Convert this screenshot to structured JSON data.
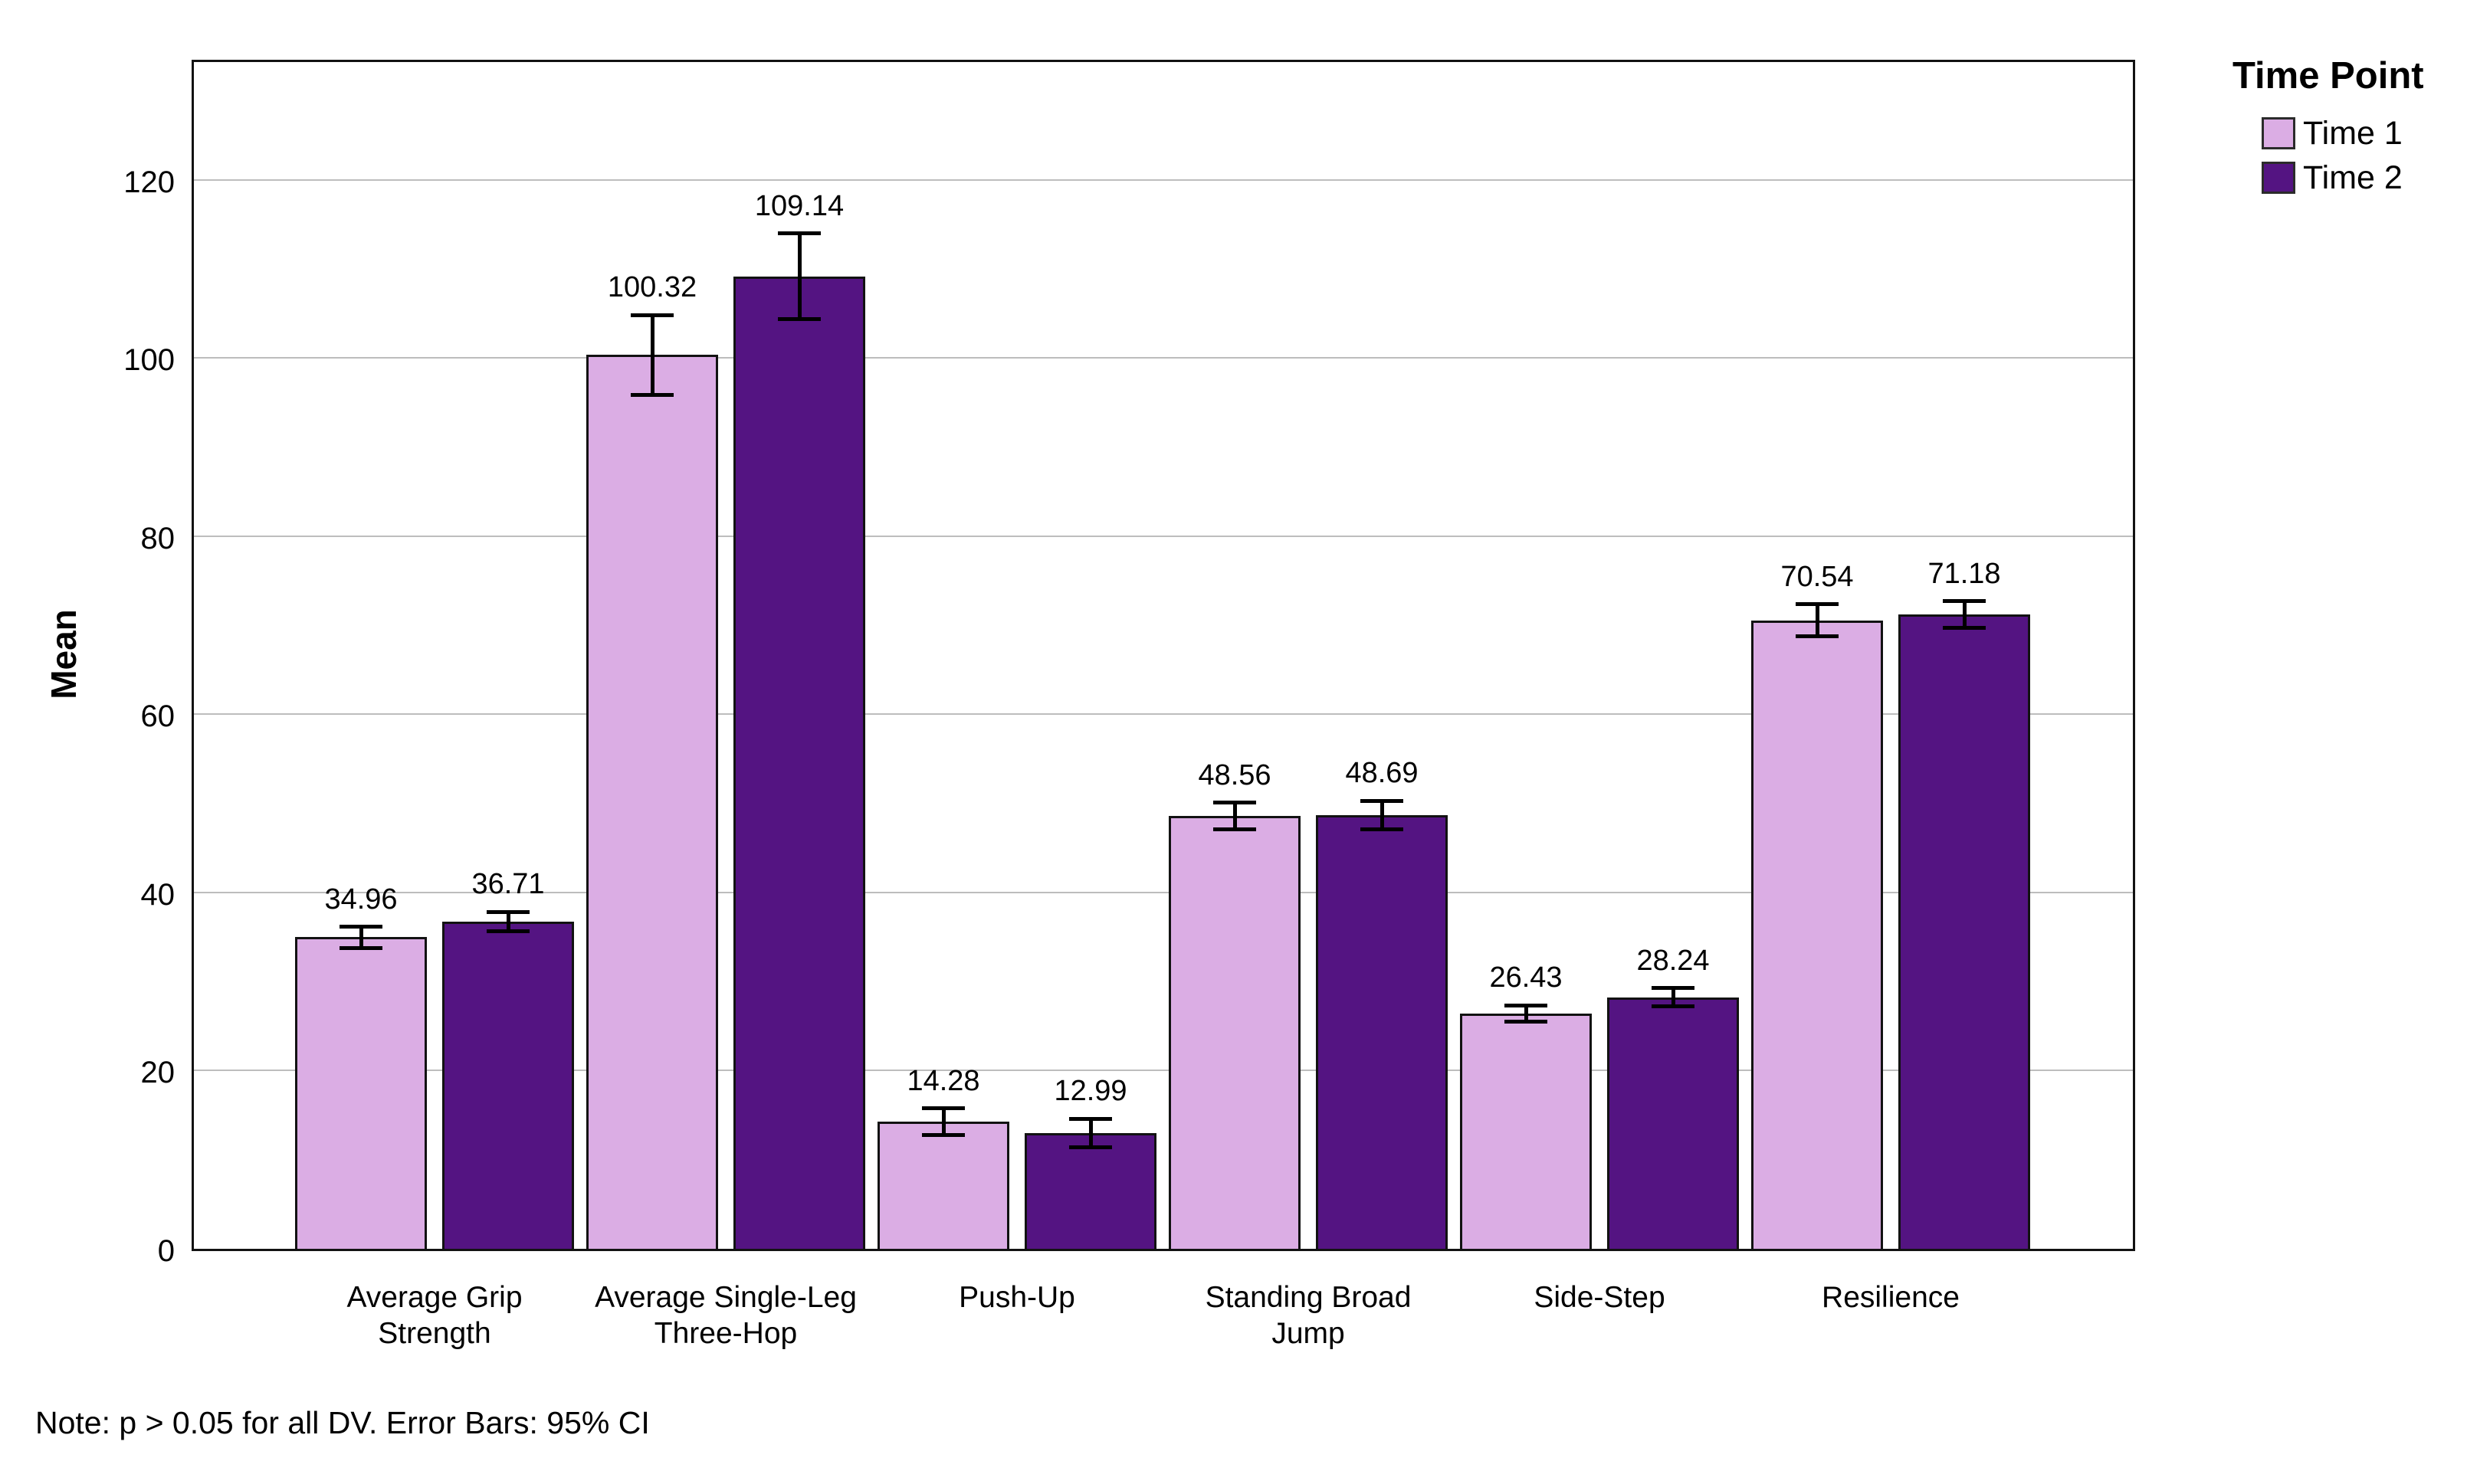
{
  "chart_data": {
    "type": "bar",
    "title": "",
    "ylabel": "Mean",
    "xlabel": "",
    "categories": [
      "Average Grip\nStrength",
      "Average Single-Leg\nThree-Hop",
      "Push-Up",
      "Standing Broad\nJump",
      "Side-Step",
      "Resilience"
    ],
    "series": [
      {
        "name": "Time 1",
        "color": "#dbade4",
        "values": [
          34.96,
          100.32,
          14.28,
          48.56,
          26.43,
          70.54
        ],
        "ci_half_width": [
          1.2,
          4.5,
          1.5,
          1.5,
          0.9,
          1.8
        ]
      },
      {
        "name": "Time 2",
        "color": "#541482",
        "values": [
          36.71,
          109.14,
          12.99,
          48.69,
          28.24,
          71.18
        ],
        "ci_half_width": [
          1.1,
          4.8,
          1.6,
          1.6,
          1.0,
          1.5
        ]
      }
    ],
    "value_labels": [
      [
        "34.96",
        "100.32",
        "14.28",
        "48.56",
        "26.43",
        "70.54"
      ],
      [
        "36.71",
        "109.14",
        "12.99",
        "48.69",
        "28.24",
        "71.18"
      ]
    ],
    "y_ticks": [
      0,
      20,
      40,
      60,
      80,
      100,
      120
    ],
    "ylim": [
      0,
      133.2
    ],
    "grid": true,
    "legend_title": "Time Point",
    "legend_position": "top-right",
    "note": "Note: p > 0.05 for all DV. Error Bars: 95% CI",
    "error_bar_meaning": "95% CI"
  }
}
